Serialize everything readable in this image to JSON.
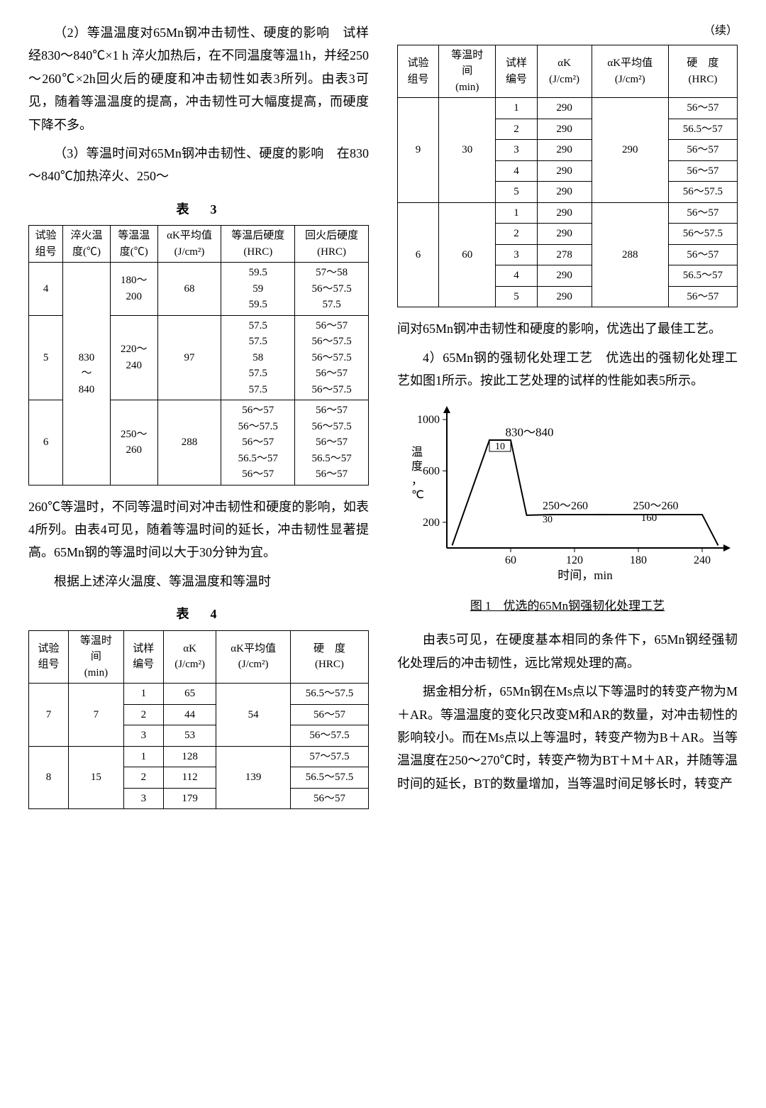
{
  "leftCol": {
    "para1": "（2）等温温度对65Mn钢冲击韧性、硬度的影响　试样经830～840℃×1 h 淬火加热后，在不同温度等温1h，并经250～260℃×2h回火后的硬度和冲击韧性如表3所列。由表3可见，随着等温温度的提高，冲击韧性可大幅度提高，而硬度下降不多。",
    "para2": "（3）等温时间对65Mn钢冲击韧性、硬度的影响　在830～840℃加热淬火、250～",
    "table3": {
      "title": "表　3",
      "headers": [
        "试验\n组号",
        "淬火温\n度(℃)",
        "等温温\n度(℃)",
        "αK平均值\n(J/cm²)",
        "等温后硬度\n(HRC)",
        "回火后硬度\n(HRC)"
      ],
      "rows": [
        {
          "g": "4",
          "q": "830\n～\n840",
          "t": "180～\n200",
          "ak": "68",
          "h1": "59.5\n59\n59.5",
          "h2": "57～58\n56～57.5\n57.5",
          "gspan": 1,
          "qspan": 3,
          "tspan": 1
        },
        {
          "g": "5",
          "q": "",
          "t": "220～\n240",
          "ak": "97",
          "h1": "57.5\n57.5\n58\n57.5\n57.5",
          "h2": "56～57\n56～57.5\n56～57.5\n56～57\n56～57.5",
          "gspan": 1,
          "tspan": 1
        },
        {
          "g": "6",
          "q": "",
          "t": "250～\n260",
          "ak": "288",
          "h1": "56～57\n56～57.5\n56～57\n56.5～57\n56～57",
          "h2": "56～57\n56～57.5\n56～57\n56.5～57\n56～57",
          "gspan": 1,
          "tspan": 1
        }
      ]
    },
    "para3": "260℃等温时，不同等温时间对冲击韧性和硬度的影响，如表4所列。由表4可见，随着等温时间的延长，冲击韧性显著提高。65Mn钢的等温时间以大于30分钟为宜。",
    "para4": "根据上述淬火温度、等温温度和等温时",
    "table4": {
      "title": "表　4",
      "headers": [
        "试验\n组号",
        "等温时\n间\n(min)",
        "试样\n编号",
        "αK\n(J/cm²)",
        "αK平均值\n(J/cm²)",
        "硬　度\n(HRC)"
      ],
      "rows": [
        {
          "g": "7",
          "time": "7",
          "n": "1",
          "ak": "65",
          "avg": "54",
          "h": "56.5～57.5",
          "gspan": 3,
          "tspan": 3,
          "aspan": 3
        },
        {
          "n": "2",
          "ak": "44",
          "h": "56～57"
        },
        {
          "n": "3",
          "ak": "53",
          "h": "56～57.5"
        },
        {
          "g": "8",
          "time": "15",
          "n": "1",
          "ak": "128",
          "avg": "139",
          "h": "57～57.5",
          "gspan": 3,
          "tspan": 3,
          "aspan": 3
        },
        {
          "n": "2",
          "ak": "112",
          "h": "56.5～57.5"
        },
        {
          "n": "3",
          "ak": "179",
          "h": "56～57"
        }
      ]
    }
  },
  "rightCol": {
    "continued": "（续）",
    "table4cont": {
      "headers": [
        "试验\n组号",
        "等温时\n间\n(min)",
        "试样\n编号",
        "αK\n(J/cm²)",
        "αK平均值\n(J/cm²)",
        "硬　度\n(HRC)"
      ],
      "rows": [
        {
          "g": "9",
          "time": "30",
          "n": "1",
          "ak": "290",
          "avg": "290",
          "h": "56～57",
          "gspan": 5,
          "tspan": 5,
          "aspan": 5
        },
        {
          "n": "2",
          "ak": "290",
          "h": "56.5～57"
        },
        {
          "n": "3",
          "ak": "290",
          "h": "56～57"
        },
        {
          "n": "4",
          "ak": "290",
          "h": "56～57"
        },
        {
          "n": "5",
          "ak": "290",
          "h": "56～57.5"
        },
        {
          "g": "6",
          "time": "60",
          "n": "1",
          "ak": "290",
          "avg": "288",
          "h": "56～57",
          "gspan": 5,
          "tspan": 5,
          "aspan": 5
        },
        {
          "n": "2",
          "ak": "290",
          "h": "56～57.5"
        },
        {
          "n": "3",
          "ak": "278",
          "h": "56～57"
        },
        {
          "n": "4",
          "ak": "290",
          "h": "56.5～57"
        },
        {
          "n": "5",
          "ak": "290",
          "h": "56～57"
        }
      ]
    },
    "para1": "间对65Mn钢冲击韧性和硬度的影响，优选出了最佳工艺。",
    "para2": "4）65Mn钢的强韧化处理工艺　优选出的强韧化处理工艺如图1所示。按此工艺处理的试样的性能如表5所示。",
    "chart": {
      "type": "line-process",
      "ylabel": "温度，℃",
      "xlabel": "时间，min",
      "yticks": [
        200,
        600,
        1000
      ],
      "xticks": [
        60,
        120,
        180,
        240
      ],
      "annotations": {
        "top": "830～840",
        "hold1": "10",
        "mid": "250～260",
        "mid2": "250～260",
        "hold2": "30",
        "hold3": "160"
      },
      "points": [
        [
          0,
          0
        ],
        [
          20,
          840
        ],
        [
          60,
          840
        ],
        [
          75,
          255
        ],
        [
          95,
          255
        ],
        [
          140,
          255
        ],
        [
          140,
          255
        ],
        [
          240,
          255
        ],
        [
          260,
          0
        ]
      ],
      "line_color": "#000000",
      "line_width": 2,
      "background": "#ffffff"
    },
    "figCaption": "图 1　优选的65Mn钢强韧化处理工艺",
    "para3": "由表5可见，在硬度基本相同的条件下，65Mn钢经强韧化处理后的冲击韧性，远比常规处理的高。",
    "para4": "据金相分析，65Mn钢在Ms点以下等温时的转变产物为M＋AR。等温温度的变化只改变M和AR的数量，对冲击韧性的影响较小。而在Ms点以上等温时，转变产物为B＋AR。当等温温度在250～270℃时，转变产物为BT＋M＋AR，并随等温时间的延长，BT的数量增加，当等温时间足够长时，转变产"
  }
}
